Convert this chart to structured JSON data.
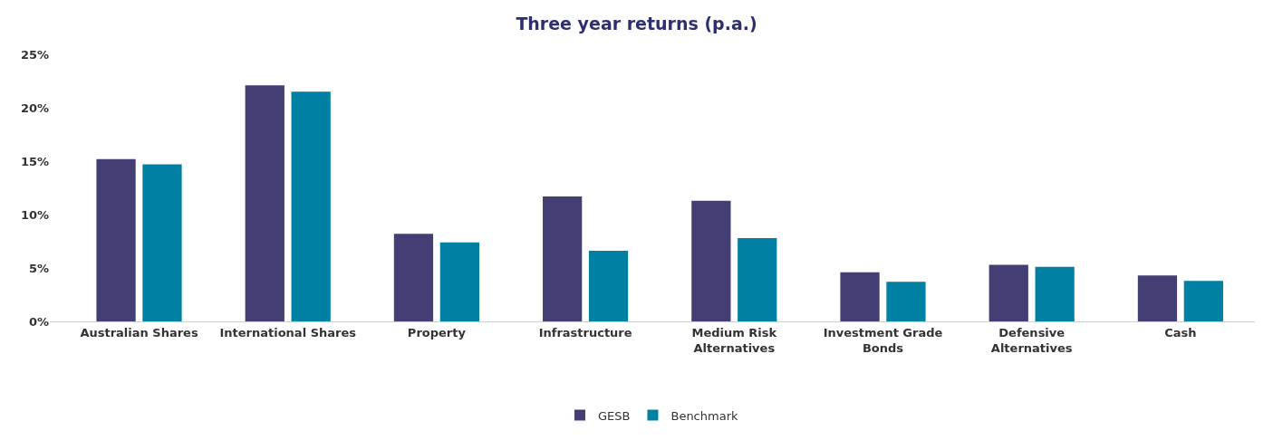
{
  "chart_data": {
    "type": "bar",
    "title": "Three year returns (p.a.)",
    "categories": [
      "Australian Shares",
      "International Shares",
      "Property",
      "Infrastructure",
      "Medium Risk\nAlternatives",
      "Investment Grade\nBonds",
      "Defensive\nAlternatives",
      "Cash"
    ],
    "series": [
      {
        "name": "GESB",
        "color": "#433e73",
        "values": [
          15.2,
          22.1,
          8.2,
          11.7,
          11.3,
          4.6,
          5.3,
          4.3
        ]
      },
      {
        "name": "Benchmark",
        "color": "#0081a3",
        "values": [
          14.7,
          21.5,
          7.4,
          6.6,
          7.8,
          3.7,
          5.1,
          3.8
        ]
      }
    ],
    "ylim": [
      0,
      25
    ],
    "yticks": [
      {
        "value": 0,
        "label": "0%"
      },
      {
        "value": 5,
        "label": "5%"
      },
      {
        "value": 10,
        "label": "10%"
      },
      {
        "value": 15,
        "label": "15%"
      },
      {
        "value": 20,
        "label": "20%"
      },
      {
        "value": 25,
        "label": "25%"
      }
    ],
    "legend": "bottom"
  }
}
